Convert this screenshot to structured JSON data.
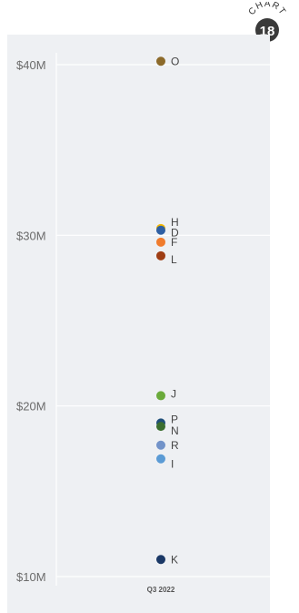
{
  "badge": {
    "word": "CHART",
    "number": "18",
    "color": "#3a3a3a"
  },
  "chart_data": {
    "type": "scatter",
    "title": "",
    "xlabel": "",
    "ylabel": "",
    "categories": [
      "Q3 2022"
    ],
    "ylim": [
      10,
      41
    ],
    "yticks": [
      {
        "value": 10,
        "label": "$10M"
      },
      {
        "value": 20,
        "label": "$20M"
      },
      {
        "value": 30,
        "label": "$30M"
      },
      {
        "value": 40,
        "label": "$40M"
      }
    ],
    "grid": true,
    "background": "#eef0f3",
    "points": [
      {
        "name": "O",
        "value": 40.2,
        "color": "#8c6a2a",
        "label_dy": 0
      },
      {
        "name": "H",
        "value": 30.4,
        "color": "#f2b705",
        "label_dy": -7
      },
      {
        "name": "D",
        "value": 30.3,
        "color": "#2e5fa3",
        "label_dy": 3
      },
      {
        "name": "F",
        "value": 29.6,
        "color": "#f07b2c",
        "label_dy": 0
      },
      {
        "name": "L",
        "value": 28.8,
        "color": "#9e3d14",
        "label_dy": 4
      },
      {
        "name": "J",
        "value": 20.6,
        "color": "#6aaa3a",
        "label_dy": -2
      },
      {
        "name": "P",
        "value": 19.0,
        "color": "#1f4e79",
        "label_dy": -4
      },
      {
        "name": "N",
        "value": 18.8,
        "color": "#3b6e2f",
        "label_dy": 5
      },
      {
        "name": "R",
        "value": 17.7,
        "color": "#7293c9",
        "label_dy": 0
      },
      {
        "name": "I",
        "value": 16.9,
        "color": "#5b9bd5",
        "label_dy": 6
      },
      {
        "name": "K",
        "value": 11.0,
        "color": "#1a3866",
        "label_dy": 0
      }
    ]
  }
}
